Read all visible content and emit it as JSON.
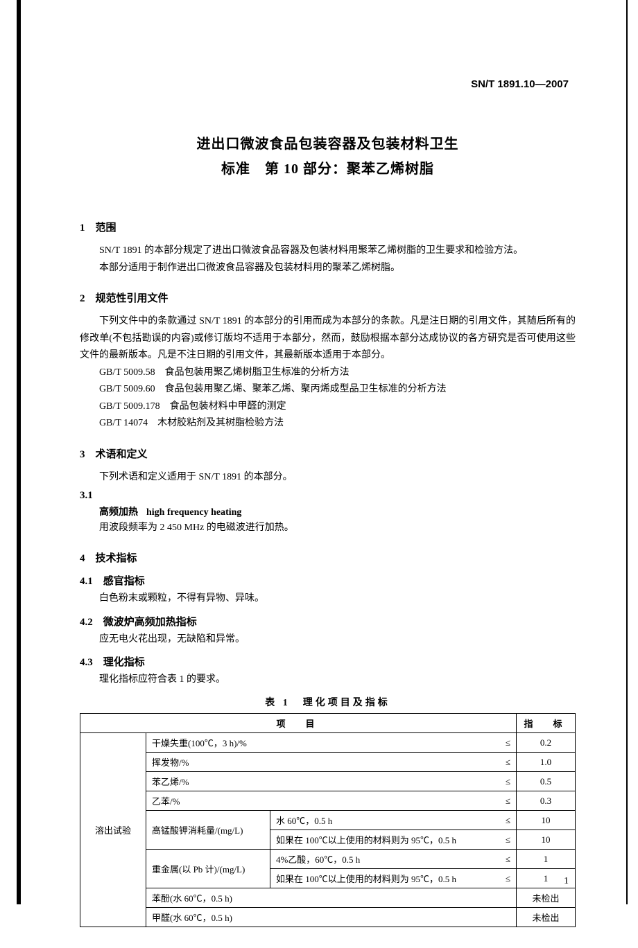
{
  "doc_id": "SN/T 1891.10—2007",
  "title_line1": "进出口微波食品包装容器及包装材料卫生",
  "title_line2": "标准　第 10 部分：聚苯乙烯树脂",
  "s1": {
    "heading": "1　范围",
    "p1": "SN/T 1891 的本部分规定了进出口微波食品容器及包装材料用聚苯乙烯树脂的卫生要求和检验方法。",
    "p2": "本部分适用于制作进出口微波食品容器及包装材料用的聚苯乙烯树脂。"
  },
  "s2": {
    "heading": "2　规范性引用文件",
    "p1": "下列文件中的条款通过 SN/T 1891 的本部分的引用而成为本部分的条款。凡是注日期的引用文件，其随后所有的修改单(不包括勘误的内容)或修订版均不适用于本部分，然而，鼓励根据本部分达成协议的各方研究是否可使用这些文件的最新版本。凡是不注日期的引用文件，其最新版本适用于本部分。",
    "r1": "GB/T 5009.58　食品包装用聚乙烯树脂卫生标准的分析方法",
    "r2": "GB/T 5009.60　食品包装用聚乙烯、聚苯乙烯、聚丙烯成型品卫生标准的分析方法",
    "r3": "GB/T 5009.178　食品包装材料中甲醛的测定",
    "r4": "GB/T 14074　木材胶粘剂及其树脂检验方法"
  },
  "s3": {
    "heading": "3　术语和定义",
    "p1": "下列术语和定义适用于 SN/T 1891 的本部分。",
    "num": "3.1",
    "term_cn": "高频加热",
    "term_en": "high frequency heating",
    "def": "用波段频率为 2 450 MHz 的电磁波进行加热。"
  },
  "s4": {
    "heading": "4　技术指标",
    "s41_h": "4.1　感官指标",
    "s41_p": "白色粉末或颗粒，不得有异物、异味。",
    "s42_h": "4.2　微波炉高频加热指标",
    "s42_p": "应无电火花出现，无缺陷和异常。",
    "s43_h": "4.3　理化指标",
    "s43_p": "理化指标应符合表 1 的要求。"
  },
  "table": {
    "caption": "表 1　理化项目及指标",
    "hdr_item": "项　目",
    "hdr_val": "指　标",
    "op": "≤",
    "category": "溶出试验",
    "rows": {
      "r1": {
        "item": "干燥失重(100℃，3 h)/%",
        "val": "0.2"
      },
      "r2": {
        "item": "挥发物/%",
        "val": "1.0"
      },
      "r3": {
        "item": "苯乙烯/%",
        "val": "0.5"
      },
      "r4": {
        "item": "乙苯/%",
        "val": "0.3"
      },
      "r5": {
        "group": "高锰酸钾消耗量/(mg/L)",
        "cond": "水 60℃，0.5 h",
        "val": "10"
      },
      "r6": {
        "cond": "如果在 100℃以上使用的材料则为 95℃，0.5 h",
        "val": "10"
      },
      "r7": {
        "group": "重金属(以 Pb 计)/(mg/L)",
        "cond": "4%乙酸，60℃，0.5 h",
        "val": "1"
      },
      "r8": {
        "cond": "如果在 100℃以上使用的材料则为 95℃，0.5 h",
        "val": "1"
      },
      "r9": {
        "item": "苯酚(水 60℃，0.5 h)",
        "val": "未检出"
      },
      "r10": {
        "item": "甲醛(水 60℃，0.5 h)",
        "val": "未检出"
      }
    }
  },
  "page_number": "1"
}
